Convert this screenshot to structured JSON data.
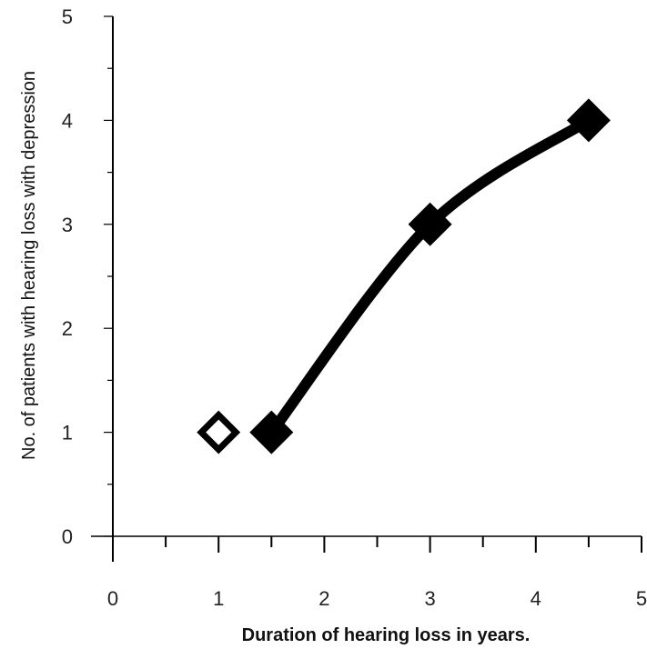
{
  "chart_data": {
    "type": "line",
    "title": "",
    "xlabel": "Duration of hearing loss in years.",
    "ylabel": "No. of patients with hearing loss with depression",
    "xlim": [
      0,
      5
    ],
    "ylim": [
      0,
      5
    ],
    "x_ticks": [
      "0",
      "1",
      "2",
      "3",
      "4",
      "5"
    ],
    "y_ticks": [
      "0",
      "1",
      "2",
      "3",
      "4",
      "5"
    ],
    "grid": false,
    "legend": "none",
    "series": [
      {
        "style": "open-diamond-marker",
        "points": [
          {
            "x": 1.0,
            "y": 1
          }
        ]
      },
      {
        "style": "filled-diamond-smooth-line",
        "points": [
          {
            "x": 1.5,
            "y": 1
          },
          {
            "x": 3.0,
            "y": 3
          },
          {
            "x": 4.5,
            "y": 4
          }
        ]
      }
    ],
    "colors": {
      "line": "#000000",
      "axis": "#000000"
    }
  }
}
